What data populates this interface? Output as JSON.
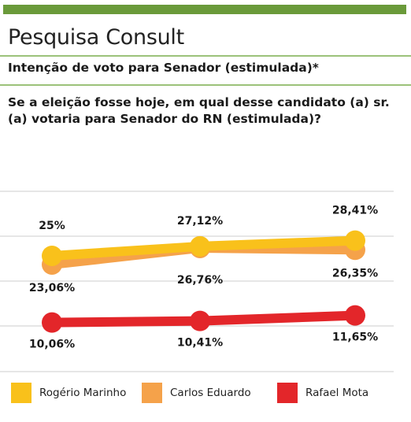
{
  "header": {
    "title": "Pesquisa Consult",
    "subtitle": "Intenção de voto para Senador (estimulada)*"
  },
  "question": "Se a eleição fosse hoje, em qual desse candidato (a) sr. (a) votaria para Senador do RN (estimulada)?",
  "colors": {
    "accent_bar": "#6a9a3a",
    "rule": "#9cc27a",
    "grid": "#cccccc"
  },
  "chart_data": {
    "type": "line",
    "x": [
      "",
      "",
      ""
    ],
    "ylim": [
      0,
      35
    ],
    "grid": true,
    "legend_position": "bottom",
    "series": [
      {
        "name": "Rogério Marinho",
        "color": "#f9c11b",
        "values": [
          25,
          27.12,
          28.41
        ],
        "labels": [
          "25%",
          "27,12%",
          "28,41%"
        ]
      },
      {
        "name": "Carlos Eduardo",
        "color": "#f5a24a",
        "values": [
          23.06,
          26.76,
          26.35
        ],
        "labels": [
          "23,06%",
          "26,76%",
          "26,35%"
        ]
      },
      {
        "name": "Rafael Mota",
        "color": "#e3262a",
        "values": [
          10.06,
          10.41,
          11.65
        ],
        "labels": [
          "10,06%",
          "10,41%",
          "11,65%"
        ]
      }
    ]
  }
}
